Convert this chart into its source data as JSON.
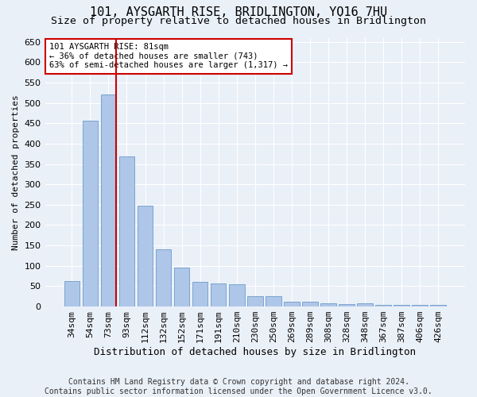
{
  "title": "101, AYSGARTH RISE, BRIDLINGTON, YO16 7HU",
  "subtitle": "Size of property relative to detached houses in Bridlington",
  "xlabel": "Distribution of detached houses by size in Bridlington",
  "ylabel": "Number of detached properties",
  "categories": [
    "34sqm",
    "54sqm",
    "73sqm",
    "93sqm",
    "112sqm",
    "132sqm",
    "152sqm",
    "171sqm",
    "191sqm",
    "210sqm",
    "230sqm",
    "250sqm",
    "269sqm",
    "289sqm",
    "308sqm",
    "328sqm",
    "348sqm",
    "367sqm",
    "387sqm",
    "406sqm",
    "426sqm"
  ],
  "values": [
    62,
    457,
    521,
    368,
    248,
    140,
    95,
    60,
    57,
    55,
    25,
    25,
    11,
    12,
    7,
    6,
    7,
    5,
    5,
    4,
    4
  ],
  "bar_color": "#aec6e8",
  "bar_edge_color": "#5a8fc2",
  "vline_color": "#cc0000",
  "annotation_text": "101 AYSGARTH RISE: 81sqm\n← 36% of detached houses are smaller (743)\n63% of semi-detached houses are larger (1,317) →",
  "annotation_box_color": "#ffffff",
  "annotation_box_edge_color": "#cc0000",
  "ylim": [
    0,
    660
  ],
  "yticks": [
    0,
    50,
    100,
    150,
    200,
    250,
    300,
    350,
    400,
    450,
    500,
    550,
    600,
    650
  ],
  "background_color": "#eaf0f8",
  "plot_background_color": "#eaf0f8",
  "footer": "Contains HM Land Registry data © Crown copyright and database right 2024.\nContains public sector information licensed under the Open Government Licence v3.0.",
  "title_fontsize": 11,
  "subtitle_fontsize": 9.5,
  "xlabel_fontsize": 9,
  "ylabel_fontsize": 8,
  "footer_fontsize": 7,
  "tick_fontsize": 8,
  "annotation_fontsize": 7.5
}
